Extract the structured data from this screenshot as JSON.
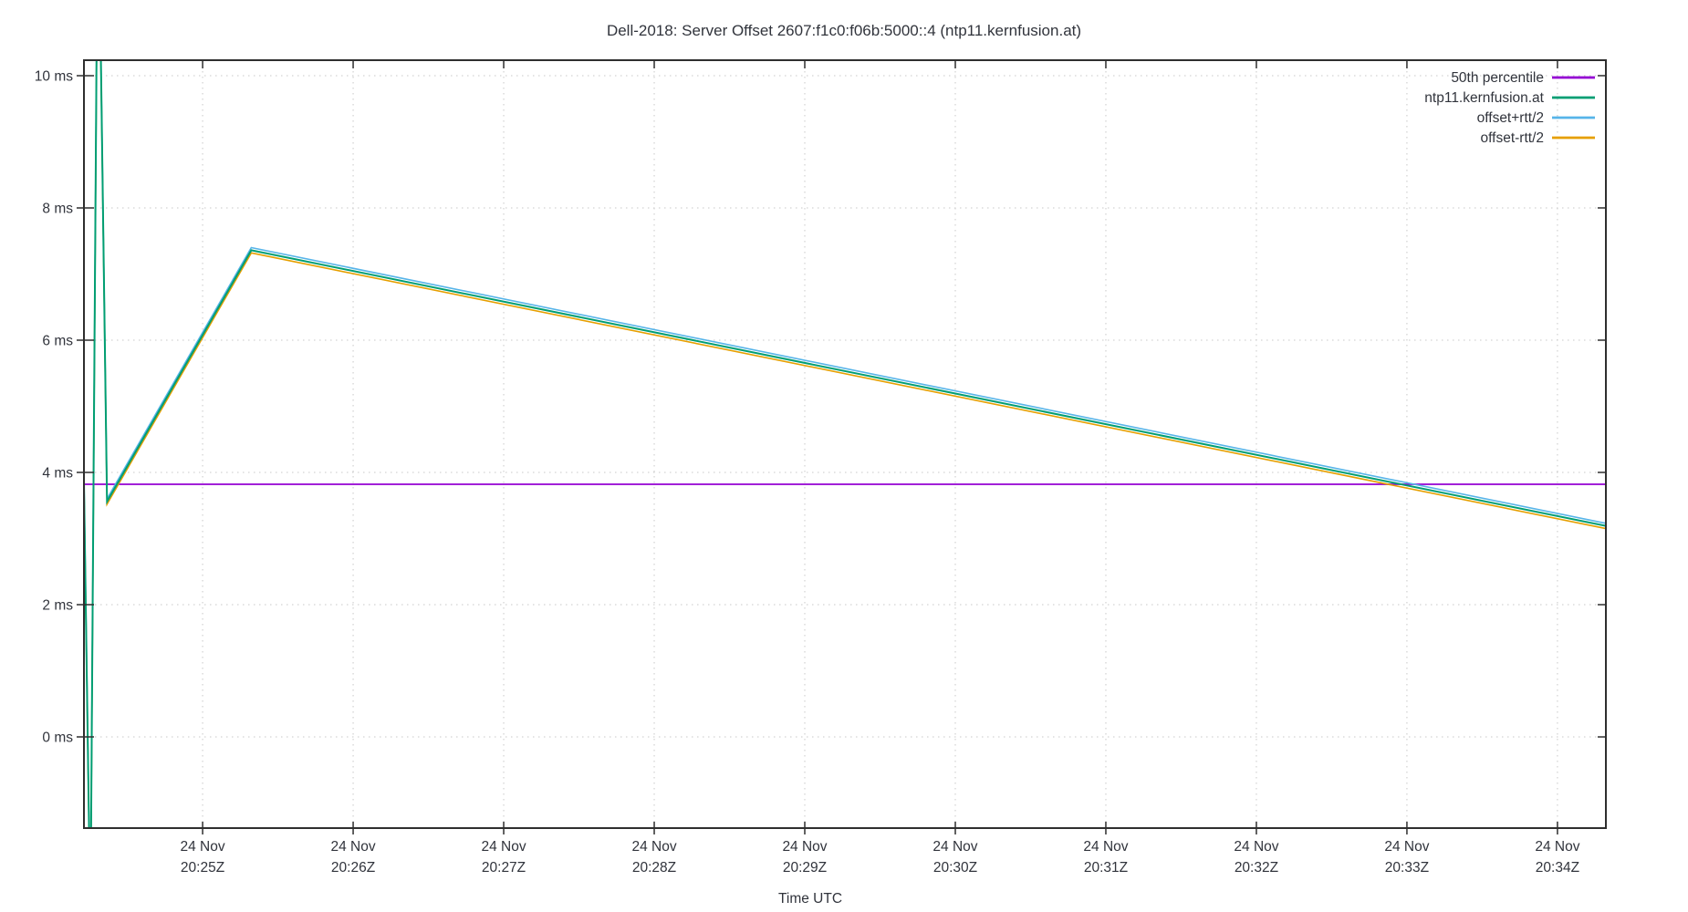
{
  "chart_data": {
    "type": "line",
    "title": "Dell-2018: Server Offset 2607:f1c0:f06b:5000::4 (ntp11.kernfusion.at)",
    "xlabel": "Time UTC",
    "ylabel": "",
    "grid": true,
    "legend_position": "top-right",
    "x_axis": {
      "units": "seconds after 24 Nov 20:24Z",
      "range": [
        12.7,
        619.3
      ],
      "ticks": [
        {
          "seconds": 60,
          "date": "24 Nov",
          "time": "20:25Z"
        },
        {
          "seconds": 120,
          "date": "24 Nov",
          "time": "20:26Z"
        },
        {
          "seconds": 180,
          "date": "24 Nov",
          "time": "20:27Z"
        },
        {
          "seconds": 240,
          "date": "24 Nov",
          "time": "20:28Z"
        },
        {
          "seconds": 300,
          "date": "24 Nov",
          "time": "20:29Z"
        },
        {
          "seconds": 360,
          "date": "24 Nov",
          "time": "20:30Z"
        },
        {
          "seconds": 420,
          "date": "24 Nov",
          "time": "20:31Z"
        },
        {
          "seconds": 480,
          "date": "24 Nov",
          "time": "20:32Z"
        },
        {
          "seconds": 540,
          "date": "24 Nov",
          "time": "20:33Z"
        },
        {
          "seconds": 600,
          "date": "24 Nov",
          "time": "20:34Z"
        }
      ]
    },
    "y_axis": {
      "units": "ms",
      "range": [
        -1.379,
        10.234
      ],
      "ticks": [
        {
          "value": 0,
          "label": "0 ms"
        },
        {
          "value": 2,
          "label": "2 ms"
        },
        {
          "value": 4,
          "label": "4 ms"
        },
        {
          "value": 6,
          "label": "6 ms"
        },
        {
          "value": 8,
          "label": "8 ms"
        },
        {
          "value": 10,
          "label": "10 ms"
        }
      ]
    },
    "series": [
      {
        "name": "50th percentile",
        "color": "#9400d3",
        "width": 1.8,
        "points": [
          [
            12.7,
            3.82
          ],
          [
            619.3,
            3.82
          ]
        ]
      },
      {
        "name": "offset+rtt/2",
        "color": "#56b4e9",
        "width": 1.6,
        "points": [
          [
            12.7,
            3.91
          ],
          [
            15.3,
            -2.76
          ],
          [
            18.3,
            13.44
          ],
          [
            21.9,
            3.6
          ],
          [
            79.4,
            7.4
          ],
          [
            619.3,
            3.23
          ]
        ]
      },
      {
        "name": "offset-rtt/2",
        "color": "#e69f00",
        "width": 1.6,
        "points": [
          [
            12.7,
            3.83
          ],
          [
            15.3,
            -2.84
          ],
          [
            18.3,
            13.36
          ],
          [
            21.9,
            3.52
          ],
          [
            79.4,
            7.32
          ],
          [
            619.3,
            3.15
          ]
        ]
      },
      {
        "name": "ntp11.kernfusion.at",
        "color": "#009e73",
        "width": 2,
        "points": [
          [
            12.7,
            3.87
          ],
          [
            15.3,
            -2.8
          ],
          [
            18.3,
            13.4
          ],
          [
            21.9,
            3.56
          ],
          [
            79.4,
            7.36
          ],
          [
            619.3,
            3.19
          ]
        ]
      }
    ],
    "legend": [
      {
        "label": "50th percentile",
        "color": "#9400d3"
      },
      {
        "label": "ntp11.kernfusion.at",
        "color": "#009e73"
      },
      {
        "label": "offset+rtt/2",
        "color": "#56b4e9"
      },
      {
        "label": "offset-rtt/2",
        "color": "#e69f00"
      }
    ]
  },
  "colors": {
    "background": "#ffffff",
    "border": "#2e2e2e",
    "grid": "#c8c8c8",
    "text": "#31343c"
  }
}
